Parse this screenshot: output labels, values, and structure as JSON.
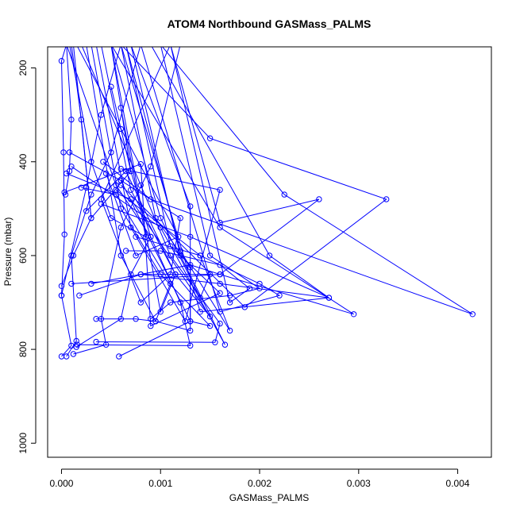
{
  "chart_data": {
    "type": "line",
    "title": "ATOM4 Northbound GASMass_PALMS",
    "xlabel": "GASMass_PALMS",
    "ylabel": "Pressure (mbar)",
    "xlim": [
      -0.00014,
      0.00434
    ],
    "ylim": [
      1030,
      155
    ],
    "y_reversed": true,
    "grid": false,
    "legend": "none",
    "series_color": "#0000ff",
    "x_ticks": [
      {
        "value": 0,
        "label": "0.000"
      },
      {
        "value": 0.001,
        "label": "0.001"
      },
      {
        "value": 0.002,
        "label": "0.002"
      },
      {
        "value": 0.003,
        "label": "0.003"
      },
      {
        "value": 0.004,
        "label": "0.004"
      }
    ],
    "y_ticks": [
      {
        "value": 200,
        "label": "200"
      },
      {
        "value": 400,
        "label": "400"
      },
      {
        "value": 600,
        "label": "600"
      },
      {
        "value": 800,
        "label": "800"
      },
      {
        "value": 1000,
        "label": "1000"
      }
    ],
    "profiles": [
      {
        "x": [
          0.0,
          0.0001,
          0.0,
          0.00025,
          0.0004,
          0.0006
        ],
        "y": [
          815,
          792,
          685,
          455,
          300,
          150
        ]
      },
      {
        "x": [
          5e-05,
          0.00015,
          0.0001,
          0.0003,
          0.0005,
          0.0008
        ],
        "y": [
          815,
          782,
          600,
          470,
          380,
          150
        ]
      },
      {
        "x": [
          0.00012,
          0.00045,
          0.0004,
          0.0006,
          0.0009,
          0.0012
        ],
        "y": [
          810,
          790,
          735,
          540,
          410,
          150
        ]
      },
      {
        "x": [
          0.00016,
          0.0013,
          0.0012,
          0.0009,
          0.0007,
          0.0005
        ],
        "y": [
          790,
          792,
          700,
          560,
          420,
          150
        ]
      },
      {
        "x": [
          0.00035,
          0.00155,
          0.0016,
          0.0011,
          0.0008,
          0.0002
        ],
        "y": [
          784,
          785,
          745,
          600,
          450,
          150
        ]
      },
      {
        "x": [
          0.00058,
          0.0013,
          0.0015,
          0.001,
          0.0006,
          0.0003
        ],
        "y": [
          815,
          740,
          750,
          640,
          500,
          150
        ]
      },
      {
        "x": [
          0.00015,
          0.0006,
          0.0007,
          0.0009,
          0.00055,
          5e-05
        ],
        "y": [
          795,
          735,
          640,
          560,
          450,
          150
        ]
      },
      {
        "x": [
          0.00035,
          0.00075,
          0.00095,
          0.0013,
          0.0013,
          0.00095,
          0.0006
        ],
        "y": [
          735,
          735,
          740,
          760,
          625,
          520,
          150
        ]
      },
      {
        "x": [
          0.0009,
          0.0011,
          0.0017,
          0.002,
          0.0015,
          0.001
        ],
        "y": [
          735,
          700,
          685,
          670,
          600,
          150
        ]
      },
      {
        "x": [
          0.00065,
          0.001,
          0.0016,
          0.0019,
          0.0017,
          0.0011
        ],
        "y": [
          590,
          590,
          620,
          670,
          700,
          150
        ]
      },
      {
        "x": [
          0.00075,
          0.0014,
          0.002,
          0.0022,
          0.0016,
          0.0008
        ],
        "y": [
          560,
          600,
          660,
          685,
          720,
          150
        ]
      },
      {
        "x": [
          0.00018,
          0.0008,
          0.0016,
          0.0027,
          0.0014,
          0.0006
        ],
        "y": [
          685,
          640,
          660,
          690,
          720,
          150
        ]
      },
      {
        "x": [
          0.0001,
          0.0016,
          0.00295,
          0.0016,
          0.0005
        ],
        "y": [
          660,
          640,
          725,
          540,
          150
        ]
      },
      {
        "x": [
          0.0003,
          0.0013,
          0.0016,
          0.0026,
          0.0016,
          0.0011
        ],
        "y": [
          660,
          620,
          640,
          480,
          530,
          150
        ]
      },
      {
        "x": [
          0.0004,
          0.0013,
          0.0027,
          0.0021,
          0.0009
        ],
        "y": [
          490,
          560,
          690,
          600,
          150
        ]
      },
      {
        "x": [
          0.00042,
          0.0009,
          0.00415,
          0.00225,
          0.001
        ],
        "y": [
          400,
          480,
          725,
          470,
          150
        ]
      },
      {
        "x": [
          0.0006,
          0.00185,
          0.00328,
          0.0015,
          0.0006
        ],
        "y": [
          450,
          710,
          480,
          350,
          150
        ]
      },
      {
        "x": [
          0.0006,
          0.0016,
          0.00125,
          0.0007,
          0.00035
        ],
        "y": [
          415,
          460,
          740,
          540,
          150
        ]
      },
      {
        "x": [
          0.0001,
          0.001,
          0.00165,
          0.0012,
          0.0007
        ],
        "y": [
          410,
          540,
          790,
          600,
          150
        ]
      },
      {
        "x": [
          0.0006,
          0.00085,
          0.0005,
          0.0003,
          8e-05
        ],
        "y": [
          285,
          560,
          520,
          400,
          150
        ]
      },
      {
        "x": [
          5e-05,
          0.0007,
          0.0015,
          0.00115,
          0.0007,
          0.0004
        ],
        "y": [
          425,
          480,
          730,
          640,
          460,
          150
        ]
      },
      {
        "x": [
          8e-05,
          0.0006,
          0.0013,
          0.0013,
          0.0007
        ],
        "y": [
          380,
          440,
          740,
          495,
          150
        ]
      },
      {
        "x": [
          3e-05,
          0.0008,
          0.0009,
          0.0016,
          0.0011,
          0.00065
        ],
        "y": [
          465,
          405,
          750,
          680,
          580,
          150
        ]
      },
      {
        "x": [
          0.0002,
          0.00055,
          0.0011,
          0.00095,
          0.0006,
          0.00025
        ],
        "y": [
          455,
          470,
          660,
          740,
          600,
          150
        ]
      },
      {
        "x": [
          0.0,
          0.00012,
          0.0003,
          0.0002,
          0.0001
        ],
        "y": [
          665,
          600,
          520,
          310,
          150
        ]
      },
      {
        "x": [
          0.0,
          3e-05,
          2e-05,
          0.0,
          5e-05
        ],
        "y": [
          685,
          555,
          380,
          185,
          150
        ]
      },
      {
        "x": [
          4e-05,
          8e-05,
          0.0001,
          5e-05
        ],
        "y": [
          470,
          420,
          310,
          150
        ]
      },
      {
        "x": [
          0.00025,
          0.00065,
          0.00115,
          0.001,
          0.0005
        ],
        "y": [
          505,
          420,
          640,
          720,
          150
        ]
      },
      {
        "x": [
          0.00045,
          0.00075,
          0.00118,
          0.0006,
          0.00015
        ],
        "y": [
          425,
          600,
          560,
          330,
          150
        ]
      },
      {
        "x": [
          0.0006,
          0.0012,
          0.0011,
          0.0008,
          0.0004,
          0.0011
        ],
        "y": [
          440,
          520,
          640,
          700,
          480,
          150
        ]
      },
      {
        "x": [
          0.00055,
          0.0014,
          0.0017,
          0.0012,
          0.00065
        ],
        "y": [
          460,
          600,
          760,
          590,
          150
        ]
      },
      {
        "x": [
          0.0008,
          0.0015,
          0.0014,
          0.001,
          0.0005
        ],
        "y": [
          640,
          640,
          690,
          520,
          150
        ]
      },
      {
        "x": [
          0.0005,
          0.0007,
          0.0003,
          0.00012
        ],
        "y": [
          240,
          420,
          520,
          150
        ]
      }
    ]
  }
}
